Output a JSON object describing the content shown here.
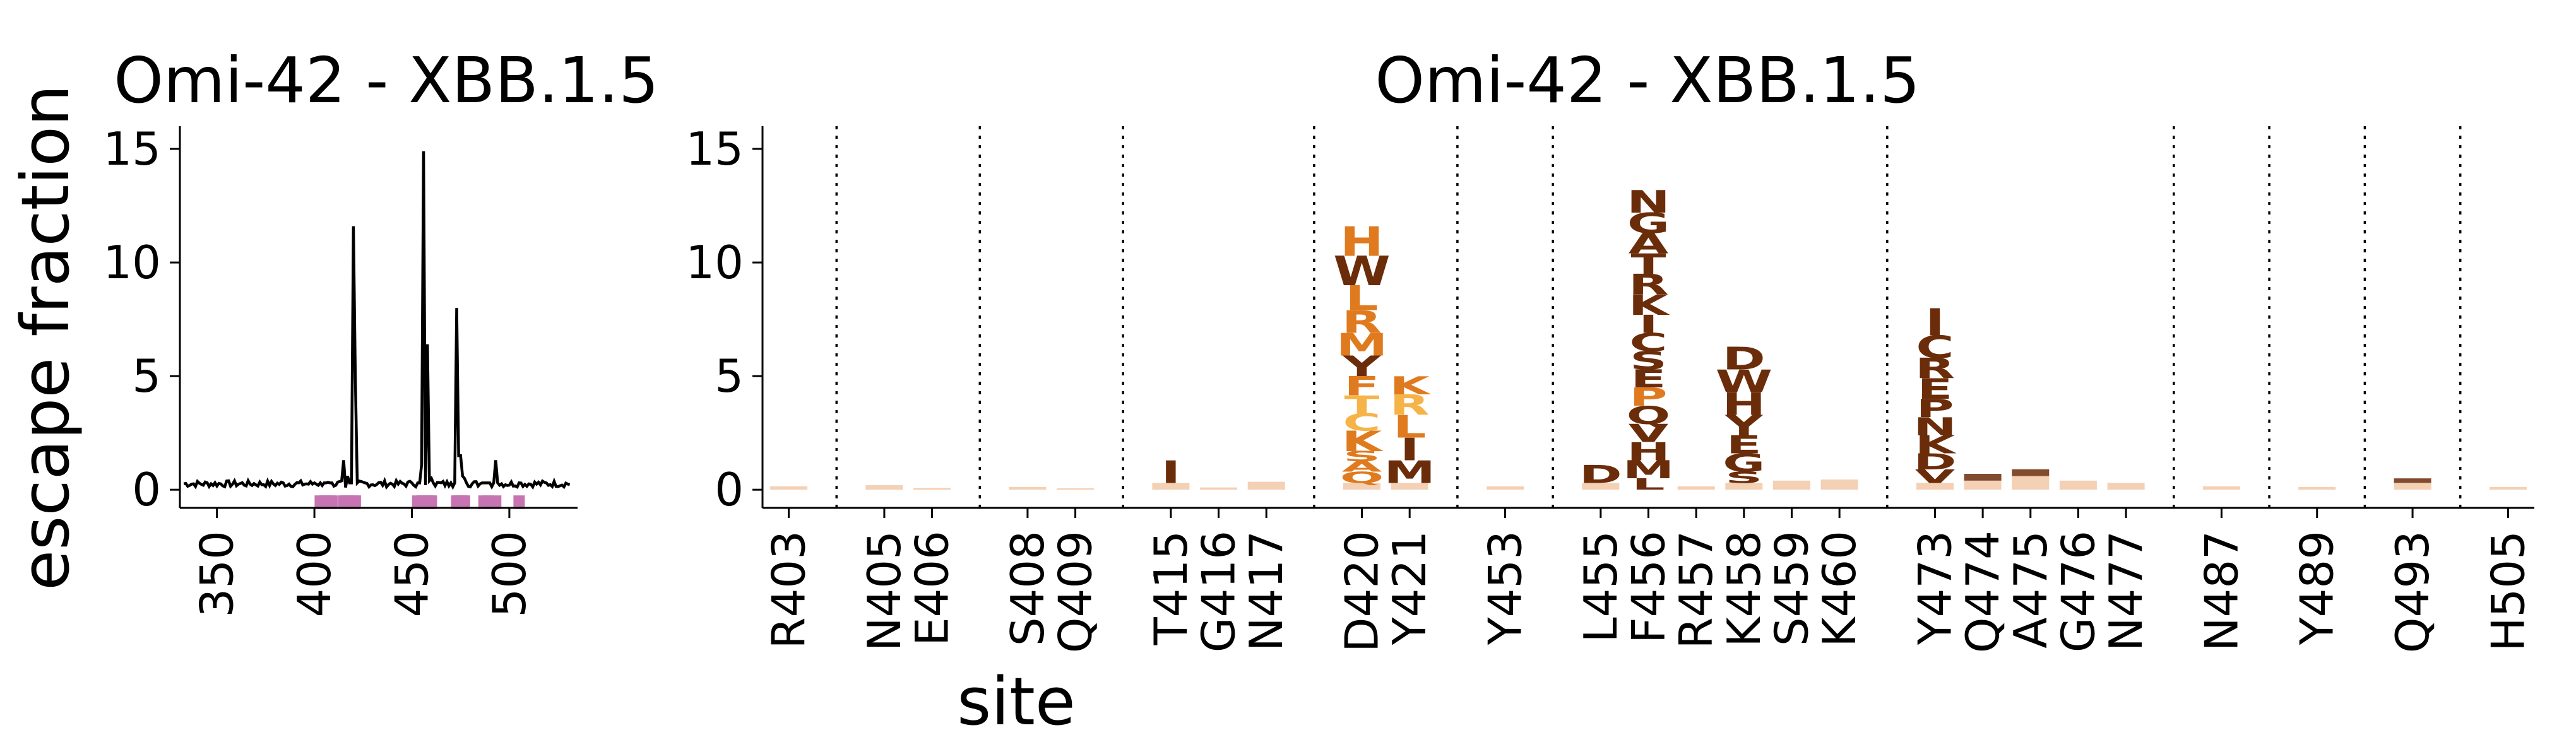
{
  "chart_data": [
    {
      "type": "line",
      "title": "Omi-42 - XBB.1.5",
      "xlabel": "",
      "ylabel": "escape fraction",
      "xlim": [
        331,
        535
      ],
      "ylim": [
        -0.8,
        16
      ],
      "x_ticks": [
        350,
        400,
        450,
        500
      ],
      "y_ticks": [
        0,
        5,
        10,
        15
      ],
      "grid": false,
      "series": [
        {
          "name": "",
          "points": [
            [
              400,
              0.3
            ],
            [
              403,
              0.3
            ],
            [
              405,
              0.3
            ],
            [
              406,
              0.3
            ],
            [
              408,
              0.3
            ],
            [
              409,
              0.3
            ],
            [
              415,
              1.3
            ],
            [
              416,
              0.1
            ],
            [
              417,
              0.6
            ],
            [
              418,
              0.3
            ],
            [
              419,
              0.3
            ],
            [
              420,
              11.6
            ],
            [
              421,
              5.0
            ],
            [
              422,
              0.3
            ],
            [
              450,
              0.3
            ],
            [
              453,
              0.3
            ],
            [
              454,
              0.3
            ],
            [
              455,
              1.1
            ],
            [
              456,
              14.9
            ],
            [
              457,
              0.2
            ],
            [
              458,
              6.4
            ],
            [
              459,
              0.4
            ],
            [
              460,
              0.5
            ],
            [
              461,
              0.3
            ],
            [
              470,
              0.3
            ],
            [
              472,
              0.3
            ],
            [
              473,
              8.0
            ],
            [
              474,
              1.5
            ],
            [
              475,
              1.5
            ],
            [
              476,
              0.6
            ],
            [
              477,
              0.5
            ],
            [
              478,
              0.3
            ],
            [
              486,
              0.3
            ],
            [
              487,
              0.3
            ],
            [
              488,
              0.3
            ],
            [
              489,
              0.3
            ],
            [
              490,
              0.3
            ],
            [
              492,
              0.3
            ],
            [
              493,
              1.3
            ],
            [
              494,
              0.3
            ],
            [
              505,
              0.3
            ]
          ]
        }
      ],
      "highlighted_sites": [
        403,
        405,
        406,
        408,
        409,
        415,
        416,
        417,
        420,
        421,
        453,
        455,
        456,
        457,
        458,
        459,
        460,
        473,
        474,
        475,
        476,
        477,
        487,
        489,
        493,
        505
      ],
      "highlight_color": "#c774b3",
      "line_color": "#000000"
    },
    {
      "type": "logo",
      "title": "Omi-42 - XBB.1.5",
      "xlabel": "site",
      "ylabel": "",
      "ylim": [
        -0.8,
        16
      ],
      "y_ticks": [
        0,
        5,
        10,
        15
      ],
      "grid": false,
      "categories": [
        "R403",
        "N405",
        "E406",
        "S408",
        "Q409",
        "T415",
        "G416",
        "N417",
        "D420",
        "Y421",
        "Y453",
        "L455",
        "F456",
        "R457",
        "K458",
        "S459",
        "K460",
        "Y473",
        "Q474",
        "A475",
        "G476",
        "N477",
        "N487",
        "Y489",
        "Q493",
        "H505"
      ],
      "separators_after": [
        "R403",
        "E406",
        "Q409",
        "N417",
        "Y421",
        "Y453",
        "K460",
        "N477",
        "N487",
        "Y489",
        "Q493"
      ],
      "colors": {
        "dark_brown": "#6b2c0a",
        "orange": "#e07a1f",
        "light_orange": "#f6b347",
        "pale": "#f2c8a8"
      },
      "stacks": [
        {
          "site": "R403",
          "letters": [
            {
              "aa": "",
              "value": 0.15,
              "color": "#f2c8a8"
            }
          ]
        },
        {
          "site": "N405",
          "letters": [
            {
              "aa": "",
              "value": 0.2,
              "color": "#f2c8a8"
            }
          ]
        },
        {
          "site": "E406",
          "letters": [
            {
              "aa": "",
              "value": 0.08,
              "color": "#f2c8a8"
            }
          ]
        },
        {
          "site": "S408",
          "letters": [
            {
              "aa": "",
              "value": 0.12,
              "color": "#f2c8a8"
            }
          ]
        },
        {
          "site": "Q409",
          "letters": [
            {
              "aa": "",
              "value": 0.06,
              "color": "#f2c8a8"
            }
          ]
        },
        {
          "site": "T415",
          "letters": [
            {
              "aa": "",
              "value": 0.3,
              "color": "#f2c8a8"
            },
            {
              "aa": "I",
              "value": 1.0,
              "color": "#6b2c0a"
            }
          ]
        },
        {
          "site": "G416",
          "letters": [
            {
              "aa": "",
              "value": 0.1,
              "color": "#f2c8a8"
            }
          ]
        },
        {
          "site": "N417",
          "letters": [
            {
              "aa": "",
              "value": 0.35,
              "color": "#f2c8a8"
            }
          ]
        },
        {
          "site": "D420",
          "letters": [
            {
              "aa": "",
              "value": 0.3,
              "color": "#f2c8a8"
            },
            {
              "aa": "Q",
              "value": 0.5,
              "color": "#e07a1f"
            },
            {
              "aa": "A",
              "value": 0.45,
              "color": "#e07a1f"
            },
            {
              "aa": "S",
              "value": 0.45,
              "color": "#e07a1f"
            },
            {
              "aa": "K",
              "value": 0.9,
              "color": "#e07a1f"
            },
            {
              "aa": "C",
              "value": 0.75,
              "color": "#f6b347"
            },
            {
              "aa": "T",
              "value": 0.8,
              "color": "#f6b347"
            },
            {
              "aa": "F",
              "value": 0.85,
              "color": "#e07a1f"
            },
            {
              "aa": "Y",
              "value": 0.9,
              "color": "#6b2c0a"
            },
            {
              "aa": "M",
              "value": 1.0,
              "color": "#e07a1f"
            },
            {
              "aa": "R",
              "value": 1.0,
              "color": "#e07a1f"
            },
            {
              "aa": "L",
              "value": 1.1,
              "color": "#e07a1f"
            },
            {
              "aa": "W",
              "value": 1.3,
              "color": "#6b2c0a"
            },
            {
              "aa": "H",
              "value": 1.3,
              "color": "#e07a1f"
            }
          ]
        },
        {
          "site": "Y421",
          "letters": [
            {
              "aa": "",
              "value": 0.3,
              "color": "#f2c8a8"
            },
            {
              "aa": "M",
              "value": 1.0,
              "color": "#6b2c0a"
            },
            {
              "aa": "I",
              "value": 1.0,
              "color": "#6b2c0a"
            },
            {
              "aa": "L",
              "value": 1.0,
              "color": "#e07a1f"
            },
            {
              "aa": "R",
              "value": 0.9,
              "color": "#f6b347"
            },
            {
              "aa": "K",
              "value": 0.8,
              "color": "#e07a1f"
            }
          ]
        },
        {
          "site": "Y453",
          "letters": [
            {
              "aa": "",
              "value": 0.15,
              "color": "#f2c8a8"
            }
          ]
        },
        {
          "site": "L455",
          "letters": [
            {
              "aa": "",
              "value": 0.3,
              "color": "#f2c8a8"
            },
            {
              "aa": "D",
              "value": 0.8,
              "color": "#6b2c0a"
            }
          ]
        },
        {
          "site": "F456",
          "letters": [
            {
              "aa": "L",
              "value": 0.5,
              "color": "#6b2c0a"
            },
            {
              "aa": "M",
              "value": 0.8,
              "color": "#6b2c0a"
            },
            {
              "aa": "H",
              "value": 0.8,
              "color": "#6b2c0a"
            },
            {
              "aa": "V",
              "value": 0.8,
              "color": "#6b2c0a"
            },
            {
              "aa": "Q",
              "value": 0.8,
              "color": "#6b2c0a"
            },
            {
              "aa": "P",
              "value": 0.8,
              "color": "#e07a1f"
            },
            {
              "aa": "E",
              "value": 0.8,
              "color": "#6b2c0a"
            },
            {
              "aa": "S",
              "value": 0.8,
              "color": "#6b2c0a"
            },
            {
              "aa": "C",
              "value": 0.8,
              "color": "#6b2c0a"
            },
            {
              "aa": "I",
              "value": 0.8,
              "color": "#6b2c0a"
            },
            {
              "aa": "K",
              "value": 0.9,
              "color": "#6b2c0a"
            },
            {
              "aa": "R",
              "value": 0.9,
              "color": "#6b2c0a"
            },
            {
              "aa": "T",
              "value": 0.9,
              "color": "#6b2c0a"
            },
            {
              "aa": "A",
              "value": 0.9,
              "color": "#6b2c0a"
            },
            {
              "aa": "G",
              "value": 0.9,
              "color": "#6b2c0a"
            },
            {
              "aa": "N",
              "value": 1.0,
              "color": "#6b2c0a"
            }
          ]
        },
        {
          "site": "R457",
          "letters": [
            {
              "aa": "",
              "value": 0.15,
              "color": "#f2c8a8"
            }
          ]
        },
        {
          "site": "K458",
          "letters": [
            {
              "aa": "",
              "value": 0.3,
              "color": "#f2c8a8"
            },
            {
              "aa": "S",
              "value": 0.5,
              "color": "#6b2c0a"
            },
            {
              "aa": "G",
              "value": 0.8,
              "color": "#6b2c0a"
            },
            {
              "aa": "E",
              "value": 0.8,
              "color": "#6b2c0a"
            },
            {
              "aa": "Y",
              "value": 0.9,
              "color": "#6b2c0a"
            },
            {
              "aa": "H",
              "value": 1.0,
              "color": "#6b2c0a"
            },
            {
              "aa": "W",
              "value": 1.0,
              "color": "#6b2c0a"
            },
            {
              "aa": "D",
              "value": 1.0,
              "color": "#6b2c0a"
            }
          ]
        },
        {
          "site": "S459",
          "letters": [
            {
              "aa": "",
              "value": 0.4,
              "color": "#f2c8a8"
            }
          ]
        },
        {
          "site": "K460",
          "letters": [
            {
              "aa": "",
              "value": 0.45,
              "color": "#f2c8a8"
            }
          ]
        },
        {
          "site": "Y473",
          "letters": [
            {
              "aa": "",
              "value": 0.3,
              "color": "#f2c8a8"
            },
            {
              "aa": "V",
              "value": 0.6,
              "color": "#6b2c0a"
            },
            {
              "aa": "D",
              "value": 0.7,
              "color": "#6b2c0a"
            },
            {
              "aa": "K",
              "value": 0.8,
              "color": "#6b2c0a"
            },
            {
              "aa": "N",
              "value": 0.8,
              "color": "#6b2c0a"
            },
            {
              "aa": "P",
              "value": 0.8,
              "color": "#6b2c0a"
            },
            {
              "aa": "E",
              "value": 0.9,
              "color": "#6b2c0a"
            },
            {
              "aa": "R",
              "value": 0.9,
              "color": "#6b2c0a"
            },
            {
              "aa": "C",
              "value": 1.0,
              "color": "#6b2c0a"
            },
            {
              "aa": "I",
              "value": 1.2,
              "color": "#6b2c0a"
            }
          ]
        },
        {
          "site": "Q474",
          "letters": [
            {
              "aa": "",
              "value": 0.4,
              "color": "#f2c8a8"
            },
            {
              "aa": "",
              "value": 0.3,
              "color": "#6b2c0a"
            }
          ]
        },
        {
          "site": "A475",
          "letters": [
            {
              "aa": "",
              "value": 0.6,
              "color": "#f2c8a8"
            },
            {
              "aa": "",
              "value": 0.3,
              "color": "#6b2c0a"
            }
          ]
        },
        {
          "site": "G476",
          "letters": [
            {
              "aa": "",
              "value": 0.4,
              "color": "#f2c8a8"
            }
          ]
        },
        {
          "site": "N477",
          "letters": [
            {
              "aa": "",
              "value": 0.3,
              "color": "#f2c8a8"
            }
          ]
        },
        {
          "site": "N487",
          "letters": [
            {
              "aa": "",
              "value": 0.15,
              "color": "#f2c8a8"
            }
          ]
        },
        {
          "site": "Y489",
          "letters": [
            {
              "aa": "",
              "value": 0.12,
              "color": "#f2c8a8"
            }
          ]
        },
        {
          "site": "Q493",
          "letters": [
            {
              "aa": "",
              "value": 0.3,
              "color": "#f2c8a8"
            },
            {
              "aa": "",
              "value": 0.2,
              "color": "#6b2c0a"
            }
          ]
        },
        {
          "site": "H505",
          "letters": [
            {
              "aa": "",
              "value": 0.12,
              "color": "#f2c8a8"
            }
          ]
        }
      ]
    }
  ]
}
